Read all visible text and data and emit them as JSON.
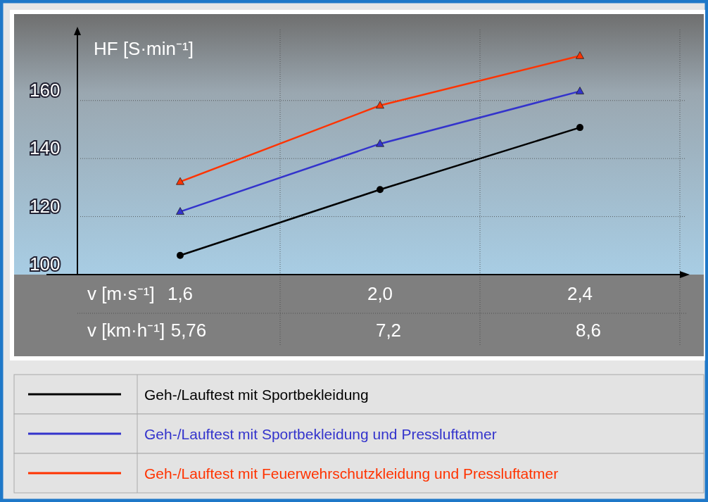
{
  "chart_data": {
    "type": "line",
    "ylabel": "HF [S·min⁻¹]",
    "xlabel": "v [m·s⁻¹]",
    "categories": [
      "1,6",
      "2,0",
      "2,4"
    ],
    "ylim": [
      100,
      183
    ],
    "yticks": [
      100,
      120,
      140,
      160
    ],
    "grid": true,
    "legend": "bottom",
    "line_style": "solid",
    "annotations": [
      "v [km·h⁻¹]",
      "5,76",
      "7,2",
      "8,6"
    ],
    "series": [
      {
        "name": "Geh-/Lauftest mit Sportbekleidung",
        "color": "#000000",
        "marker": "circle",
        "values": [
          106.6,
          129.3,
          150.7
        ]
      },
      {
        "name": "Geh-/Lauftest mit Sportbekleidung und Pressluftatmer",
        "color": "#3333cc",
        "marker": "triangle",
        "values": [
          121.7,
          145.1,
          163.2
        ]
      },
      {
        "name": "Geh-/Lauftest mit Feuerwehrschutzkleidung und Pressluftatmer",
        "color": "#ff3300",
        "marker": "triangle",
        "values": [
          132,
          158.3,
          175.4
        ]
      }
    ]
  }
}
